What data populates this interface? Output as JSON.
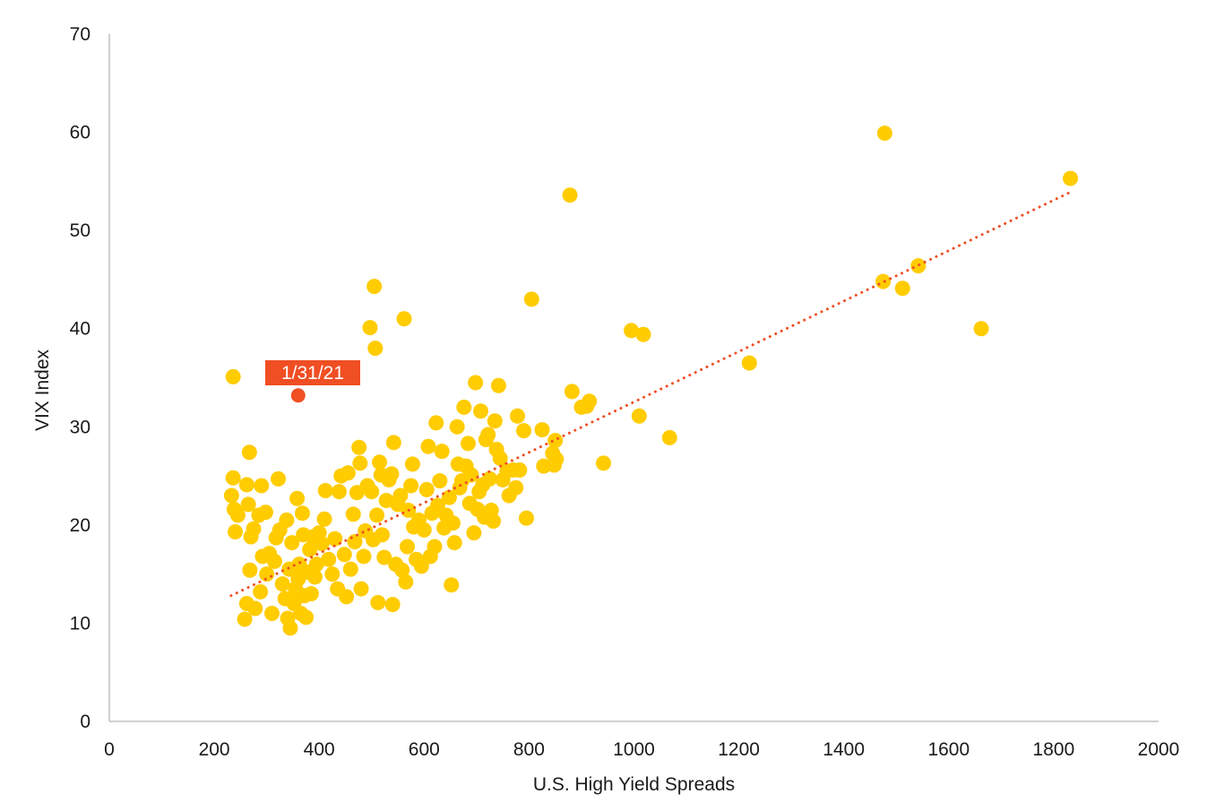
{
  "chart_data": {
    "type": "scatter",
    "title": "",
    "xlabel": "U.S. High Yield Spreads",
    "ylabel": "VIX Index",
    "xlim": [
      0,
      2000
    ],
    "ylim": [
      0,
      70
    ],
    "xticks": [
      0,
      200,
      400,
      600,
      800,
      1000,
      1200,
      1400,
      1600,
      1800,
      2000
    ],
    "yticks": [
      0,
      10,
      20,
      30,
      40,
      50,
      60,
      70
    ],
    "grid": false,
    "colors": {
      "points": "#FFCC00",
      "trendline": "#F04E23",
      "highlight": "#F04E23",
      "axis": "#bfbfbf",
      "text": "#1a1a1a"
    },
    "trendline": {
      "style": "dotted",
      "x": [
        232,
        1832
      ],
      "y": [
        12.8,
        53.9
      ]
    },
    "highlight": {
      "label": "1/31/21",
      "x": 360,
      "y": 33.2
    },
    "points": [
      [
        236,
        35.1
      ],
      [
        233,
        23.0
      ],
      [
        236,
        24.8
      ],
      [
        238,
        21.6
      ],
      [
        240,
        19.3
      ],
      [
        245,
        21.0
      ],
      [
        258,
        10.4
      ],
      [
        262,
        12.0
      ],
      [
        267,
        27.4
      ],
      [
        262,
        24.1
      ],
      [
        265,
        22.1
      ],
      [
        270,
        18.8
      ],
      [
        268,
        15.4
      ],
      [
        275,
        19.6
      ],
      [
        285,
        21.0
      ],
      [
        290,
        24.0
      ],
      [
        298,
        21.3
      ],
      [
        278,
        11.5
      ],
      [
        288,
        13.2
      ],
      [
        292,
        16.8
      ],
      [
        300,
        15.0
      ],
      [
        305,
        17.1
      ],
      [
        310,
        11.0
      ],
      [
        315,
        16.3
      ],
      [
        318,
        18.7
      ],
      [
        322,
        24.7
      ],
      [
        325,
        19.5
      ],
      [
        330,
        14.0
      ],
      [
        335,
        12.5
      ],
      [
        338,
        20.5
      ],
      [
        340,
        10.5
      ],
      [
        343,
        15.5
      ],
      [
        345,
        9.5
      ],
      [
        348,
        18.2
      ],
      [
        352,
        12.0
      ],
      [
        355,
        13.5
      ],
      [
        358,
        22.7
      ],
      [
        360,
        14.5
      ],
      [
        362,
        16.0
      ],
      [
        365,
        11.0
      ],
      [
        368,
        21.2
      ],
      [
        370,
        19.0
      ],
      [
        372,
        12.8
      ],
      [
        375,
        10.6
      ],
      [
        378,
        15.2
      ],
      [
        382,
        17.5
      ],
      [
        385,
        13.0
      ],
      [
        388,
        18.8
      ],
      [
        392,
        14.7
      ],
      [
        395,
        16.0
      ],
      [
        400,
        19.2
      ],
      [
        405,
        18.1
      ],
      [
        410,
        20.6
      ],
      [
        412,
        23.5
      ],
      [
        418,
        16.5
      ],
      [
        425,
        15.0
      ],
      [
        430,
        18.6
      ],
      [
        435,
        13.5
      ],
      [
        438,
        23.4
      ],
      [
        442,
        25.0
      ],
      [
        448,
        17.0
      ],
      [
        452,
        12.7
      ],
      [
        455,
        25.3
      ],
      [
        460,
        15.5
      ],
      [
        465,
        21.1
      ],
      [
        468,
        18.3
      ],
      [
        472,
        23.3
      ],
      [
        476,
        27.9
      ],
      [
        478,
        26.3
      ],
      [
        480,
        13.5
      ],
      [
        485,
        16.8
      ],
      [
        488,
        19.4
      ],
      [
        492,
        24.0
      ],
      [
        497,
        40.1
      ],
      [
        500,
        23.4
      ],
      [
        503,
        18.5
      ],
      [
        505,
        44.3
      ],
      [
        507,
        38.0
      ],
      [
        510,
        21.0
      ],
      [
        512,
        12.1
      ],
      [
        515,
        26.4
      ],
      [
        518,
        25.1
      ],
      [
        520,
        19.0
      ],
      [
        524,
        16.7
      ],
      [
        528,
        22.5
      ],
      [
        533,
        24.6
      ],
      [
        538,
        25.2
      ],
      [
        540,
        11.9
      ],
      [
        542,
        28.4
      ],
      [
        546,
        16.0
      ],
      [
        550,
        22.1
      ],
      [
        555,
        23.0
      ],
      [
        558,
        15.4
      ],
      [
        562,
        41.0
      ],
      [
        565,
        14.2
      ],
      [
        568,
        17.8
      ],
      [
        570,
        21.5
      ],
      [
        575,
        24.0
      ],
      [
        578,
        26.2
      ],
      [
        580,
        19.8
      ],
      [
        585,
        16.5
      ],
      [
        590,
        20.5
      ],
      [
        595,
        15.8
      ],
      [
        600,
        19.5
      ],
      [
        605,
        23.6
      ],
      [
        608,
        28.0
      ],
      [
        612,
        16.8
      ],
      [
        615,
        21.2
      ],
      [
        620,
        17.8
      ],
      [
        623,
        30.4
      ],
      [
        626,
        22.0
      ],
      [
        630,
        24.5
      ],
      [
        634,
        27.5
      ],
      [
        638,
        19.7
      ],
      [
        642,
        21.0
      ],
      [
        648,
        22.8
      ],
      [
        652,
        13.9
      ],
      [
        655,
        20.2
      ],
      [
        658,
        18.2
      ],
      [
        663,
        30.0
      ],
      [
        665,
        26.2
      ],
      [
        668,
        23.8
      ],
      [
        672,
        24.5
      ],
      [
        676,
        32.0
      ],
      [
        680,
        26.0
      ],
      [
        684,
        28.3
      ],
      [
        687,
        22.2
      ],
      [
        690,
        25.1
      ],
      [
        695,
        19.2
      ],
      [
        698,
        34.5
      ],
      [
        702,
        21.6
      ],
      [
        705,
        23.4
      ],
      [
        708,
        31.6
      ],
      [
        712,
        24.1
      ],
      [
        715,
        20.8
      ],
      [
        718,
        28.7
      ],
      [
        722,
        29.2
      ],
      [
        725,
        24.7
      ],
      [
        728,
        21.5
      ],
      [
        732,
        20.4
      ],
      [
        735,
        30.6
      ],
      [
        738,
        27.7
      ],
      [
        742,
        34.2
      ],
      [
        745,
        26.8
      ],
      [
        750,
        24.6
      ],
      [
        758,
        25.5
      ],
      [
        762,
        23.0
      ],
      [
        770,
        25.6
      ],
      [
        775,
        23.8
      ],
      [
        778,
        31.1
      ],
      [
        782,
        25.6
      ],
      [
        790,
        29.6
      ],
      [
        795,
        20.7
      ],
      [
        805,
        43.0
      ],
      [
        825,
        29.7
      ],
      [
        828,
        26.0
      ],
      [
        845,
        27.3
      ],
      [
        848,
        26.1
      ],
      [
        850,
        28.6
      ],
      [
        852,
        26.7
      ],
      [
        878,
        53.6
      ],
      [
        882,
        33.6
      ],
      [
        900,
        32.0
      ],
      [
        910,
        32.1
      ],
      [
        915,
        32.6
      ],
      [
        942,
        26.3
      ],
      [
        995,
        39.8
      ],
      [
        1010,
        31.1
      ],
      [
        1018,
        39.4
      ],
      [
        1068,
        28.9
      ],
      [
        1220,
        36.5
      ],
      [
        1475,
        44.8
      ],
      [
        1478,
        59.9
      ],
      [
        1512,
        44.1
      ],
      [
        1542,
        46.4
      ],
      [
        1662,
        40.0
      ],
      [
        1832,
        55.3
      ]
    ]
  }
}
